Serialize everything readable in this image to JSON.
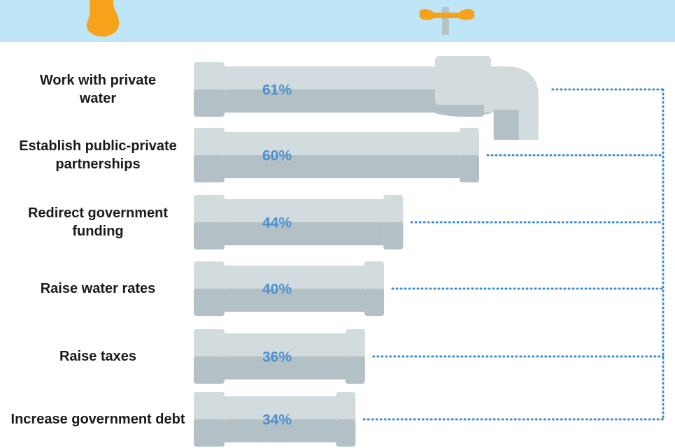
{
  "chart_data": {
    "type": "bar",
    "orientation": "horizontal",
    "categories": [
      "Work with private water",
      "Establish public-private partnerships",
      "Redirect government funding",
      "Raise water rates",
      "Raise taxes",
      "Increase government debt"
    ],
    "values": [
      61,
      60,
      44,
      40,
      36,
      34
    ],
    "value_labels": [
      "61%",
      "60%",
      "44%",
      "40%",
      "36%",
      "34%"
    ],
    "color": "#d2dbde"
  }
}
